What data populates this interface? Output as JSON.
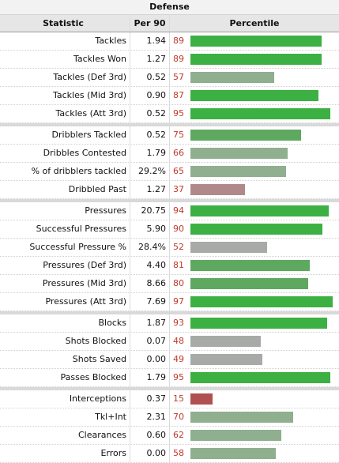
{
  "table": {
    "caption": "Defense",
    "headers": {
      "statistic": "Statistic",
      "per90": "Per 90",
      "percentile": "Percentile"
    },
    "groups": [
      [
        {
          "stat": "Tackles",
          "per90": "1.94",
          "pct": 89
        },
        {
          "stat": "Tackles Won",
          "per90": "1.27",
          "pct": 89
        },
        {
          "stat": "Tackles (Def 3rd)",
          "per90": "0.52",
          "pct": 57
        },
        {
          "stat": "Tackles (Mid 3rd)",
          "per90": "0.90",
          "pct": 87
        },
        {
          "stat": "Tackles (Att 3rd)",
          "per90": "0.52",
          "pct": 95
        }
      ],
      [
        {
          "stat": "Dribblers Tackled",
          "per90": "0.52",
          "pct": 75
        },
        {
          "stat": "Dribbles Contested",
          "per90": "1.79",
          "pct": 66
        },
        {
          "stat": "% of dribblers tackled",
          "per90": "29.2%",
          "pct": 65
        },
        {
          "stat": "Dribbled Past",
          "per90": "1.27",
          "pct": 37
        }
      ],
      [
        {
          "stat": "Pressures",
          "per90": "20.75",
          "pct": 94
        },
        {
          "stat": "Successful Pressures",
          "per90": "5.90",
          "pct": 90
        },
        {
          "stat": "Successful Pressure %",
          "per90": "28.4%",
          "pct": 52
        },
        {
          "stat": "Pressures (Def 3rd)",
          "per90": "4.40",
          "pct": 81
        },
        {
          "stat": "Pressures (Mid 3rd)",
          "per90": "8.66",
          "pct": 80
        },
        {
          "stat": "Pressures (Att 3rd)",
          "per90": "7.69",
          "pct": 97
        }
      ],
      [
        {
          "stat": "Blocks",
          "per90": "1.87",
          "pct": 93
        },
        {
          "stat": "Shots Blocked",
          "per90": "0.07",
          "pct": 48
        },
        {
          "stat": "Shots Saved",
          "per90": "0.00",
          "pct": 49
        },
        {
          "stat": "Passes Blocked",
          "per90": "1.79",
          "pct": 95
        }
      ],
      [
        {
          "stat": "Interceptions",
          "per90": "0.37",
          "pct": 15
        },
        {
          "stat": "Tkl+Int",
          "per90": "2.31",
          "pct": 70
        },
        {
          "stat": "Clearances",
          "per90": "0.60",
          "pct": 62
        },
        {
          "stat": "Errors",
          "per90": "0.00",
          "pct": 58
        }
      ]
    ]
  },
  "colors": {
    "high": "#3cb043",
    "mid_high": "#5fa85f",
    "mid": "#8faf8f",
    "neutral": "#a8aaa8",
    "low": "#b08a8a",
    "very_low": "#b05050",
    "pct_text": "#c0392b"
  }
}
